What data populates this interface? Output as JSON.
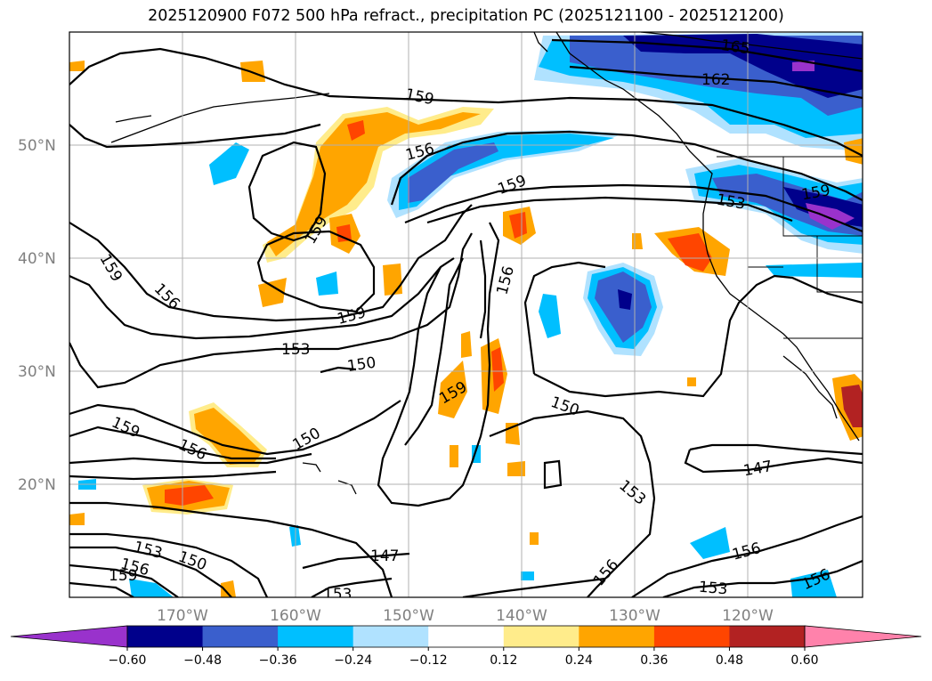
{
  "title": "2025120900 F072 500 hPa refract., precipitation PC (2025121100 - 2025121200)",
  "lat_labels": [
    "50°N",
    "40°N",
    "30°N",
    "20°N"
  ],
  "lon_labels": [
    "170°W",
    "160°W",
    "150°W",
    "140°W",
    "130°W",
    "120°W"
  ],
  "colorbar": {
    "colors": [
      "#9932cc",
      "#00008b",
      "#3a5fcd",
      "#00bfff",
      "#b0e2ff",
      "#ffffff",
      "#ffec8b",
      "#ffa500",
      "#ff4500",
      "#b22222",
      "#ff82ab"
    ],
    "labels": [
      "−0.60",
      "−0.48",
      "−0.36",
      "−0.24",
      "−0.12",
      "0.12",
      "0.24",
      "0.36",
      "0.48",
      "0.60"
    ]
  },
  "contour_labels": {
    "c165": "165",
    "c162": "162",
    "c159_top": "159",
    "c156_top": "156",
    "c159_mid": "159",
    "c153_ne": "153",
    "c159_ne": "159",
    "c159_left": "159",
    "c156_left": "156",
    "c156_center": "156",
    "c159_center": "159",
    "c153_center": "153",
    "c150_center": "150",
    "c159_sw": "159",
    "c150_right": "150",
    "c159_w": "159",
    "c156_w": "156",
    "c150_w": "150",
    "c147_e": "147",
    "c153_e": "153",
    "c153_s": "153",
    "c150_s": "150",
    "c156_s": "156",
    "c147_s": "147",
    "c156_se": "156",
    "c153_se": "153",
    "c156_se2": "156",
    "c153_bl": "153",
    "c156_bl": "156",
    "c159_bl": "159",
    "c153_bot": "153"
  }
}
